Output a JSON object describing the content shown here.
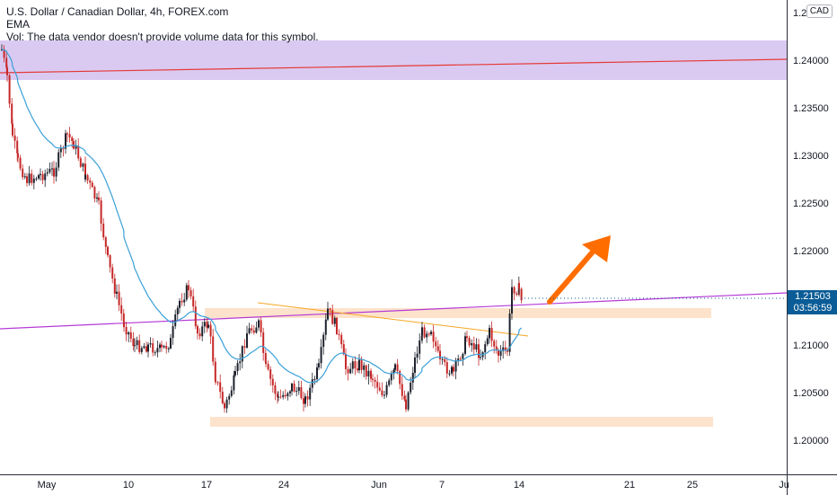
{
  "legend": {
    "title": "U.S. Dollar / Canadian Dollar, 4h, FOREX.com",
    "ema": "EMA",
    "vol": "Vol: The data vendor doesn't provide volume data for this symbol."
  },
  "price_scale": {
    "currency": "CAD",
    "top_partial": "1.2",
    "labels": [
      "1.24000",
      "1.23500",
      "1.23000",
      "1.22500",
      "1.22000",
      "1.21000",
      "1.20500",
      "1.20000"
    ],
    "current_price": "1.21503",
    "countdown": "03:56:59"
  },
  "time_scale": {
    "labels": [
      "May",
      "10",
      "17",
      "24",
      "Jun",
      "7",
      "14",
      "21",
      "25",
      "Ju"
    ]
  },
  "colors": {
    "up": "#089981",
    "down": "#b2182b",
    "candle": "#1e222d",
    "ema": "#2196f3",
    "resistance_zone": "#d1c4e9",
    "support_zone": "#ffe0c2",
    "trendline": "#9c27b0",
    "arrow": "#ff6d00"
  }
}
